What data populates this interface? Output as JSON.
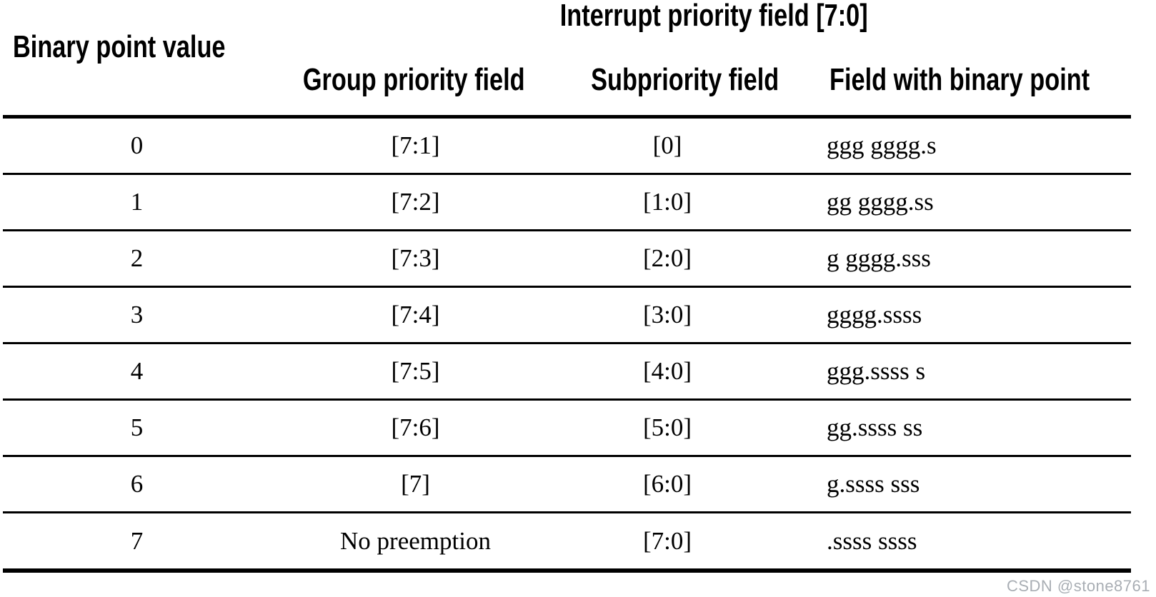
{
  "page": {
    "background": "#ffffff",
    "text_color": "#000000",
    "rule_color": "#000000"
  },
  "table": {
    "span_header": "Interrupt priority field [7:0]",
    "col1_header": "Binary point value",
    "sub_headers": [
      "Group priority field",
      "Subpriority field",
      "Field with binary point"
    ],
    "rows": [
      {
        "binary_point": "0",
        "group_priority": "[7:1]",
        "subpriority": "[0]",
        "field_with_binary_point": "ggg gggg.s"
      },
      {
        "binary_point": "1",
        "group_priority": "[7:2]",
        "subpriority": "[1:0]",
        "field_with_binary_point": "gg gggg.ss"
      },
      {
        "binary_point": "2",
        "group_priority": "[7:3]",
        "subpriority": "[2:0]",
        "field_with_binary_point": "g gggg.sss"
      },
      {
        "binary_point": "3",
        "group_priority": "[7:4]",
        "subpriority": "[3:0]",
        "field_with_binary_point": "gggg.ssss"
      },
      {
        "binary_point": "4",
        "group_priority": "[7:5]",
        "subpriority": "[4:0]",
        "field_with_binary_point": "ggg.ssss s"
      },
      {
        "binary_point": "5",
        "group_priority": "[7:6]",
        "subpriority": "[5:0]",
        "field_with_binary_point": "gg.ssss ss"
      },
      {
        "binary_point": "6",
        "group_priority": "[7]",
        "subpriority": "[6:0]",
        "field_with_binary_point": "g.ssss sss"
      },
      {
        "binary_point": "7",
        "group_priority": "No preemption",
        "subpriority": "[7:0]",
        "field_with_binary_point": ".ssss ssss"
      }
    ]
  },
  "watermark": {
    "text": "CSDN @stone8761",
    "color": "#a9aeb4"
  }
}
